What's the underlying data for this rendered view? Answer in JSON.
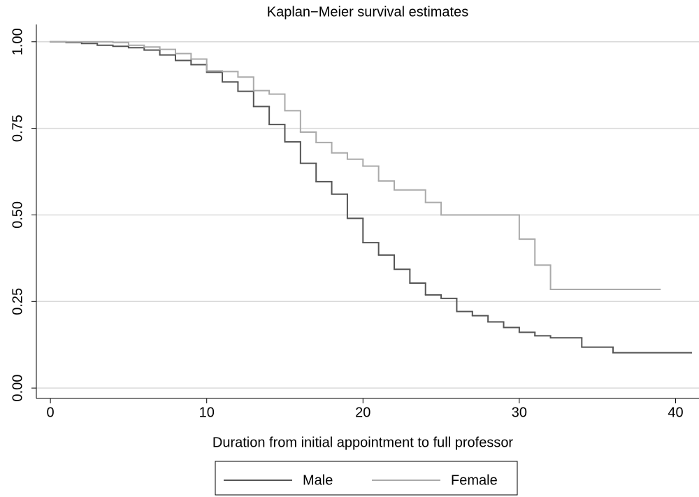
{
  "chart_data": {
    "type": "step",
    "title": "Kaplan−Meier survival estimates",
    "x_label": "Duration from initial appointment to full professor",
    "xlim": [
      -0.9,
      41.5
    ],
    "ylim": [
      -0.03,
      1.05
    ],
    "xticks": [
      0,
      10,
      20,
      30,
      40
    ],
    "yticks": [
      {
        "value": 0,
        "label": "0.00"
      },
      {
        "value": 0.25,
        "label": "0.25"
      },
      {
        "value": 0.5,
        "label": "0.50"
      },
      {
        "value": 0.75,
        "label": "0.75"
      },
      {
        "value": 1,
        "label": "1.00"
      }
    ],
    "grid": true,
    "legend_position": "bottom",
    "series": [
      {
        "name": "Male",
        "color": "#555555",
        "x": [
          0,
          1,
          2,
          3,
          4,
          5,
          6,
          7,
          8,
          9,
          10,
          11,
          12,
          13,
          14,
          15,
          16,
          17,
          18,
          19,
          20,
          21,
          22,
          23,
          24,
          25,
          26,
          27,
          28,
          29,
          30,
          31,
          32,
          34,
          36,
          41
        ],
        "values": [
          1.0,
          0.998,
          0.995,
          0.99,
          0.987,
          0.983,
          0.976,
          0.962,
          0.946,
          0.934,
          0.912,
          0.884,
          0.857,
          0.813,
          0.761,
          0.711,
          0.649,
          0.596,
          0.56,
          0.49,
          0.42,
          0.384,
          0.343,
          0.303,
          0.269,
          0.259,
          0.221,
          0.209,
          0.191,
          0.175,
          0.161,
          0.151,
          0.145,
          0.118,
          0.102,
          0.102
        ]
      },
      {
        "name": "Female",
        "color": "#aaaaaa",
        "x": [
          0,
          4,
          5,
          6,
          7,
          8,
          9,
          10,
          11,
          12,
          13,
          14,
          15,
          16,
          17,
          18,
          19,
          20,
          21,
          22,
          24,
          25,
          30,
          31,
          32,
          39
        ],
        "values": [
          1.0,
          0.998,
          0.99,
          0.985,
          0.978,
          0.966,
          0.95,
          0.916,
          0.914,
          0.898,
          0.859,
          0.849,
          0.801,
          0.739,
          0.709,
          0.679,
          0.661,
          0.641,
          0.598,
          0.572,
          0.536,
          0.5,
          0.43,
          0.355,
          0.285,
          0.285
        ]
      }
    ]
  }
}
